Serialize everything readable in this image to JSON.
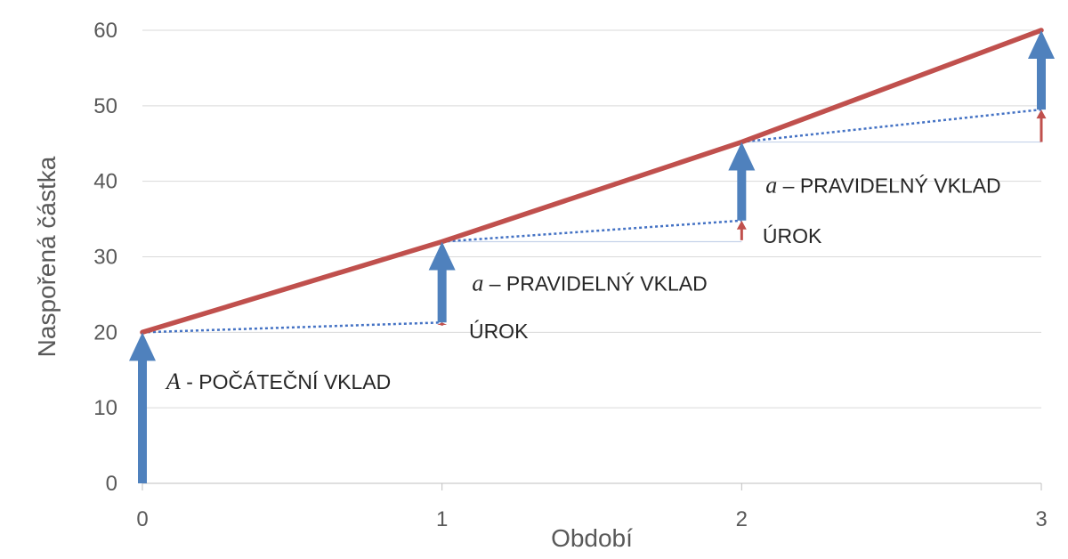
{
  "chart_data": {
    "type": "line",
    "xlabel": "Období",
    "ylabel": "Naspořená částka",
    "x_ticks": [
      "0",
      "1",
      "2",
      "3"
    ],
    "y_ticks": [
      "0",
      "10",
      "20",
      "30",
      "40",
      "50",
      "60"
    ],
    "xlim": [
      0,
      3
    ],
    "ylim": [
      0,
      60
    ],
    "grid": true,
    "colors": {
      "main": "#C0504D",
      "deposit": "#4F81BD",
      "interest": "#C0504D",
      "grid": "#D9D9D9",
      "helper": "#4472C4"
    },
    "series": [
      {
        "x": [
          0,
          1,
          2,
          3
        ],
        "y": [
          20,
          32,
          45.2,
          60
        ]
      }
    ],
    "helper_lines": [
      {
        "from": [
          0,
          20
        ],
        "to": [
          1,
          21.3
        ]
      },
      {
        "from": [
          1,
          32
        ],
        "to": [
          2,
          34.8
        ]
      },
      {
        "from": [
          2,
          45.2
        ],
        "to": [
          3,
          49.5
        ]
      }
    ],
    "baseline_lines": [
      {
        "from": [
          1,
          32
        ],
        "to": [
          2,
          32
        ]
      },
      {
        "from": [
          2,
          45.2
        ],
        "to": [
          3,
          45.2
        ]
      }
    ],
    "deposit_arrows": [
      {
        "x": 0,
        "y0": 0,
        "y1": 20
      },
      {
        "x": 1,
        "y0": 21.3,
        "y1": 32
      },
      {
        "x": 2,
        "y0": 34.8,
        "y1": 45.2
      },
      {
        "x": 3,
        "y0": 49.5,
        "y1": 60
      }
    ],
    "interest_arrows": [
      {
        "x": 1,
        "y0": 20.9,
        "y1": 21.3
      },
      {
        "x": 2,
        "y0": 32.2,
        "y1": 34.8
      },
      {
        "x": 3,
        "y0": 45.2,
        "y1": 49.5
      }
    ],
    "annotations": [
      {
        "var": "A",
        "text": " - POČÁTEČNÍ VKLAD",
        "x": 0.08,
        "y": 12.5
      },
      {
        "var": "a",
        "text": " – PRAVIDELNÝ VKLAD",
        "x": 1.1,
        "y": 25.5
      },
      {
        "text": "ÚROK",
        "x": 1.09,
        "y": 19.2
      },
      {
        "var": "a",
        "text": " – PRAVIDELNÝ VKLAD",
        "x": 2.08,
        "y": 38.5
      },
      {
        "text": "ÚROK",
        "x": 2.07,
        "y": 31.8
      }
    ]
  }
}
